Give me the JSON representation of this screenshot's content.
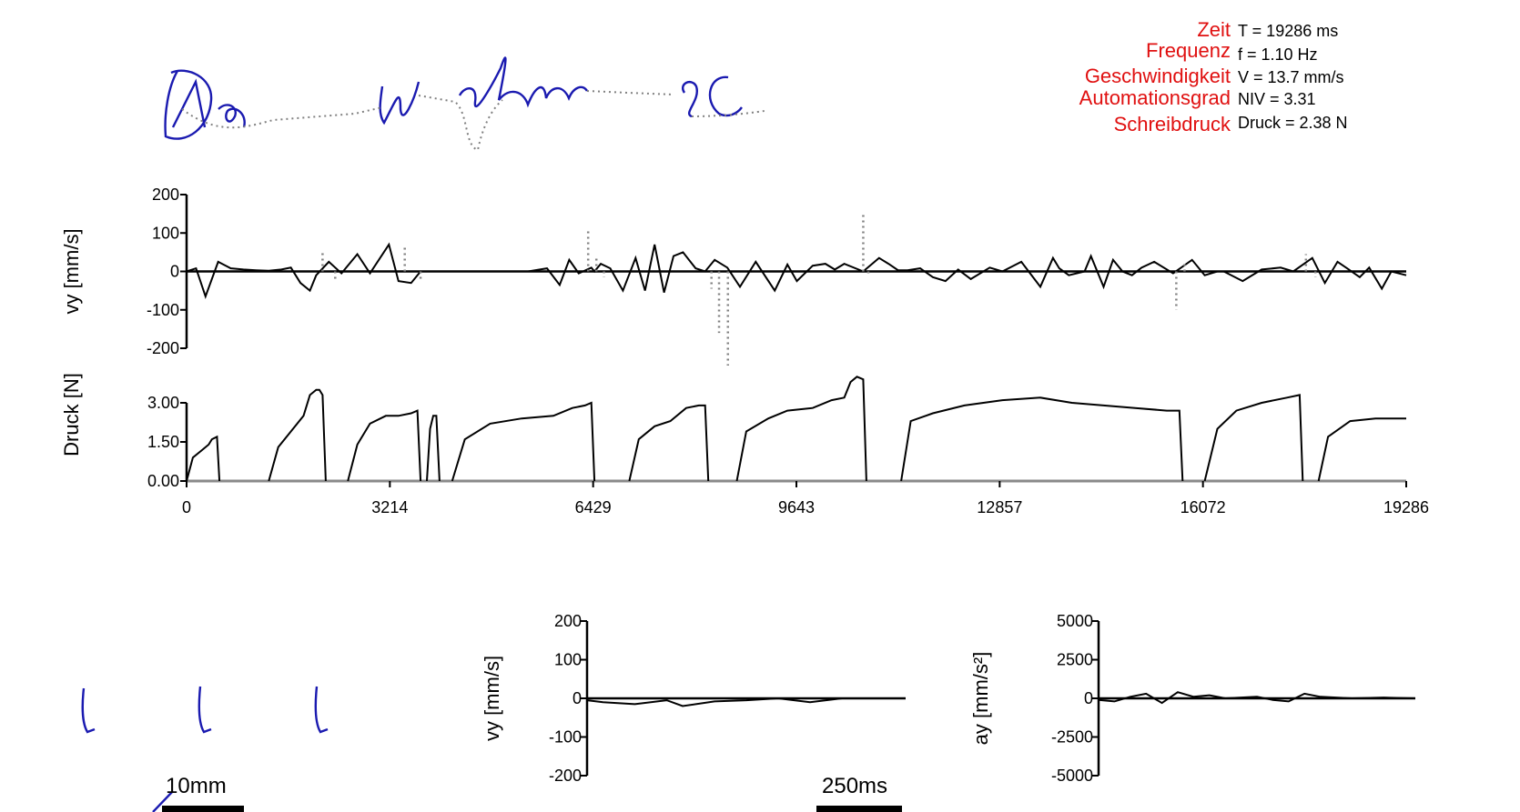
{
  "stats": {
    "labels": [
      "Zeit",
      "Frequenz",
      "Geschwindigkeit",
      "Automationsgrad",
      "Schreibdruck"
    ],
    "values": [
      "T = 19286 ms",
      "f = 1.10 Hz",
      "V = 13.7 mm/s",
      "NIV = 3.31",
      "Druck = 2.38 N"
    ],
    "label_color": "#e01010"
  },
  "handwriting": {
    "ink_color": "#1a1ab0",
    "gap_color": "#808080"
  },
  "chart_data": [
    {
      "type": "line",
      "id": "vy-main",
      "ylabel": "vy [mm/s]",
      "ylim": [
        -200,
        200
      ],
      "yticks": [
        "200",
        "100",
        "0",
        "-100",
        "-200"
      ],
      "xlim": [
        0,
        19286
      ],
      "series": [
        {
          "x": [
            0,
            150,
            300,
            500,
            700,
            900,
            1100,
            1300,
            1500,
            1650,
            1800,
            1950,
            2050,
            2250,
            2450,
            2700,
            2900,
            3200,
            3350,
            3550,
            3700,
            3950,
            4100,
            4500,
            5400,
            5700,
            5900,
            6050,
            6200,
            6400,
            6450,
            6550,
            6700,
            6900,
            7100,
            7250,
            7400,
            7550,
            7700,
            7850,
            8050,
            8200,
            8350,
            8550,
            8750,
            9000,
            9300,
            9500,
            9650,
            9900,
            10100,
            10250,
            10400,
            10700,
            10950,
            11100,
            11250,
            11400,
            11600,
            11800,
            12000,
            12200,
            12400,
            12700,
            12900,
            13200,
            13500,
            13700,
            13800,
            13950,
            14200,
            14300,
            14500,
            14650,
            14800,
            14950,
            15100,
            15300,
            15600,
            15900,
            16100,
            16300,
            16400,
            16700,
            17000,
            17300,
            17500,
            17800,
            18000,
            18200,
            18350,
            18550,
            18700,
            18900,
            19050,
            19286
          ],
          "y": [
            0,
            8,
            -65,
            25,
            8,
            5,
            3,
            2,
            5,
            10,
            -30,
            -50,
            -10,
            25,
            -5,
            45,
            -5,
            70,
            -25,
            -30,
            0,
            0,
            0,
            0,
            0,
            8,
            -35,
            30,
            -5,
            10,
            0,
            20,
            8,
            -50,
            35,
            -50,
            70,
            -55,
            40,
            50,
            8,
            0,
            30,
            10,
            -40,
            25,
            -50,
            18,
            -25,
            15,
            20,
            5,
            20,
            0,
            35,
            20,
            3,
            3,
            8,
            -15,
            -25,
            5,
            -20,
            10,
            0,
            25,
            -40,
            35,
            8,
            -10,
            0,
            40,
            -40,
            30,
            0,
            -10,
            10,
            25,
            -5,
            30,
            -10,
            0,
            0,
            -25,
            5,
            10,
            0,
            35,
            -30,
            25,
            8,
            -15,
            10,
            -45,
            0,
            -10
          ]
        }
      ],
      "scatter_series": [
        {
          "x": [
            2150,
            2350,
            3450,
            3700,
            6350,
            6480,
            6600,
            8300,
            8420,
            8560,
            10700,
            10780,
            15650,
            15780,
            17700,
            17850
          ],
          "y": [
            55,
            -25,
            65,
            -25,
            105,
            40,
            -15,
            -45,
            -160,
            -245,
            150,
            -10,
            -100,
            20,
            45,
            -15
          ]
        }
      ]
    },
    {
      "type": "line",
      "id": "druck-main",
      "ylabel": "Druck [N]",
      "ylim": [
        0,
        3.0
      ],
      "yticks": [
        "3.00",
        "1.50",
        "0.00"
      ],
      "xlim": [
        0,
        19286
      ],
      "xticks": [
        "0",
        "3214",
        "6429",
        "9643",
        "12857",
        "16072",
        "19286"
      ],
      "strokes": [
        {
          "x": [
            0,
            100,
            250,
            350,
            400,
            480,
            520
          ],
          "y": [
            0,
            0.9,
            1.2,
            1.4,
            1.6,
            1.7,
            0
          ]
        },
        {
          "x": [
            1300,
            1450,
            1650,
            1850,
            1950,
            2050,
            2100,
            2150,
            2200
          ],
          "y": [
            0,
            1.3,
            1.9,
            2.5,
            3.3,
            3.5,
            3.5,
            3.3,
            0
          ]
        },
        {
          "x": [
            2550,
            2700,
            2900,
            3150,
            3350,
            3550,
            3650,
            3700
          ],
          "y": [
            0,
            1.4,
            2.2,
            2.5,
            2.5,
            2.6,
            2.7,
            0
          ]
        },
        {
          "x": [
            3800,
            3850,
            3900,
            3950,
            4000
          ],
          "y": [
            0,
            2.0,
            2.5,
            2.5,
            0
          ]
        },
        {
          "x": [
            4200,
            4400,
            4800,
            5300,
            5800,
            6100,
            6300,
            6400,
            6450
          ],
          "y": [
            0,
            1.6,
            2.2,
            2.4,
            2.5,
            2.8,
            2.9,
            3.0,
            0
          ]
        },
        {
          "x": [
            7000,
            7150,
            7400,
            7650,
            7900,
            8100,
            8200,
            8250
          ],
          "y": [
            0,
            1.6,
            2.1,
            2.3,
            2.8,
            2.9,
            2.9,
            0
          ]
        },
        {
          "x": [
            8700,
            8850,
            9200,
            9500,
            9900,
            10200,
            10400,
            10500,
            10600,
            10700,
            10750
          ],
          "y": [
            0,
            1.9,
            2.4,
            2.7,
            2.8,
            3.1,
            3.2,
            3.8,
            4.0,
            3.9,
            0
          ]
        },
        {
          "x": [
            11300,
            11450,
            11800,
            12300,
            12900,
            13500,
            14000,
            14500,
            15000,
            15500,
            15700,
            15750
          ],
          "y": [
            0,
            2.3,
            2.6,
            2.9,
            3.1,
            3.2,
            3.0,
            2.9,
            2.8,
            2.7,
            2.7,
            0
          ]
        },
        {
          "x": [
            16100,
            16300,
            16600,
            17000,
            17400,
            17600,
            17650
          ],
          "y": [
            0,
            2.0,
            2.7,
            3.0,
            3.2,
            3.3,
            0
          ]
        },
        {
          "x": [
            17900,
            18050,
            18400,
            18800,
            19286
          ],
          "y": [
            0,
            1.7,
            2.3,
            2.4,
            2.4
          ]
        }
      ]
    },
    {
      "type": "line",
      "id": "vy-small",
      "ylabel": "vy [mm/s]",
      "ylim": [
        -200,
        200
      ],
      "yticks": [
        "200",
        "100",
        "0",
        "-100",
        "-200"
      ],
      "xlim": [
        0,
        1
      ],
      "series": [
        {
          "x": [
            0,
            0.05,
            0.15,
            0.25,
            0.3,
            0.4,
            0.5,
            0.6,
            0.7,
            0.8,
            0.9,
            1.0
          ],
          "y": [
            -5,
            -10,
            -15,
            -5,
            -20,
            -8,
            -5,
            0,
            -10,
            0,
            0,
            0
          ]
        }
      ],
      "scale_label": "250ms"
    },
    {
      "type": "line",
      "id": "ay-small",
      "ylabel": "ay [mm/s²]",
      "ylim": [
        -5000,
        5000
      ],
      "yticks": [
        "5000",
        "2500",
        "0",
        "-2500",
        "-5000"
      ],
      "xlim": [
        0,
        1
      ],
      "series": [
        {
          "x": [
            0,
            0.05,
            0.1,
            0.15,
            0.2,
            0.25,
            0.3,
            0.35,
            0.4,
            0.5,
            0.55,
            0.6,
            0.65,
            0.7,
            0.8,
            0.9,
            1.0
          ],
          "y": [
            -100,
            -200,
            100,
            300,
            -300,
            400,
            100,
            200,
            0,
            100,
            -100,
            -200,
            300,
            100,
            0,
            50,
            0
          ]
        }
      ]
    }
  ],
  "scale_bars": {
    "length_label": "10mm",
    "time_label": "250ms"
  }
}
